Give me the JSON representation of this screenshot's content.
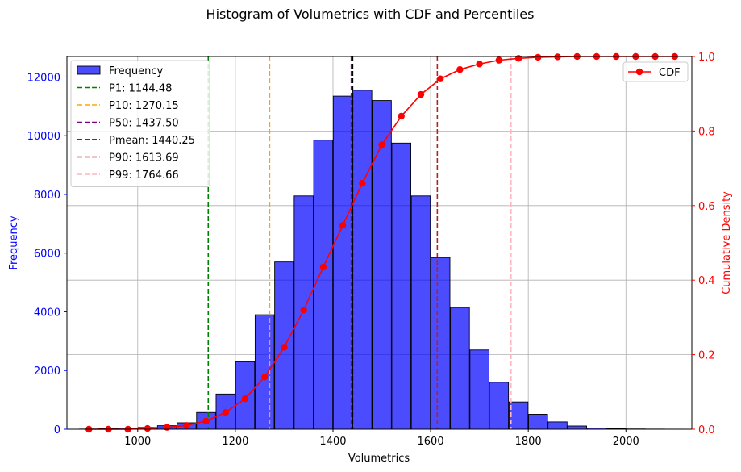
{
  "chart_data": {
    "type": "bar",
    "title": "Histogram of Volumetrics with CDF and Percentiles",
    "xlabel": "Volumetrics",
    "ylabel": "Frequency",
    "y2label": "Cumulative Density",
    "xlim": [
      855,
      2135
    ],
    "ylim": [
      0,
      12700
    ],
    "y2lim": [
      0,
      1.0
    ],
    "x_ticks": [
      1000,
      1200,
      1400,
      1600,
      1800,
      2000
    ],
    "y_ticks": [
      0,
      2000,
      4000,
      6000,
      8000,
      10000,
      12000
    ],
    "y2_ticks": [
      0.0,
      0.2,
      0.4,
      0.6,
      0.8,
      1.0
    ],
    "grid": true,
    "bar_width": 39,
    "bars": [
      {
        "x": 900,
        "value": 5
      },
      {
        "x": 940,
        "value": 20
      },
      {
        "x": 980,
        "value": 40
      },
      {
        "x": 1020,
        "value": 60
      },
      {
        "x": 1060,
        "value": 120
      },
      {
        "x": 1100,
        "value": 220
      },
      {
        "x": 1140,
        "value": 570
      },
      {
        "x": 1180,
        "value": 1200
      },
      {
        "x": 1220,
        "value": 2300
      },
      {
        "x": 1260,
        "value": 3900
      },
      {
        "x": 1300,
        "value": 5700
      },
      {
        "x": 1340,
        "value": 7950
      },
      {
        "x": 1380,
        "value": 9850
      },
      {
        "x": 1420,
        "value": 11350
      },
      {
        "x": 1460,
        "value": 11550
      },
      {
        "x": 1500,
        "value": 11200
      },
      {
        "x": 1540,
        "value": 9750
      },
      {
        "x": 1580,
        "value": 7950
      },
      {
        "x": 1620,
        "value": 5850
      },
      {
        "x": 1660,
        "value": 4150
      },
      {
        "x": 1700,
        "value": 2700
      },
      {
        "x": 1740,
        "value": 1600
      },
      {
        "x": 1780,
        "value": 930
      },
      {
        "x": 1820,
        "value": 510
      },
      {
        "x": 1860,
        "value": 250
      },
      {
        "x": 1900,
        "value": 110
      },
      {
        "x": 1940,
        "value": 40
      },
      {
        "x": 1980,
        "value": 20
      },
      {
        "x": 2020,
        "value": 8
      },
      {
        "x": 2060,
        "value": 4
      },
      {
        "x": 2100,
        "value": 2
      }
    ],
    "bar_color": "#0000ff",
    "bar_edge_color": "#000000",
    "percentile_lines": [
      {
        "label": "P1: 1144.48",
        "x": 1144.48,
        "color": "#008000"
      },
      {
        "label": "P10: 1270.15",
        "x": 1270.15,
        "color": "#ffa500"
      },
      {
        "label": "P50: 1437.50",
        "x": 1437.5,
        "color": "#800080"
      },
      {
        "label": "Pmean: 1440.25",
        "x": 1440.25,
        "color": "#000000"
      },
      {
        "label": "P90: 1613.69",
        "x": 1613.69,
        "color": "#b22222"
      },
      {
        "label": "P99: 1764.66",
        "x": 1764.66,
        "color": "#ffb6c1"
      }
    ],
    "cdf": {
      "name": "CDF",
      "color": "#ff0000",
      "x": [
        900,
        940,
        980,
        1020,
        1060,
        1100,
        1140,
        1180,
        1220,
        1260,
        1300,
        1340,
        1380,
        1420,
        1460,
        1500,
        1540,
        1580,
        1620,
        1660,
        1700,
        1740,
        1780,
        1820,
        1860,
        1900,
        1940,
        1980,
        2020,
        2060,
        2100
      ],
      "y": [
        0.0,
        0.0,
        0.0,
        0.002,
        0.005,
        0.01,
        0.022,
        0.045,
        0.082,
        0.14,
        0.22,
        0.32,
        0.435,
        0.547,
        0.66,
        0.763,
        0.84,
        0.898,
        0.94,
        0.965,
        0.98,
        0.99,
        0.995,
        0.998,
        0.999,
        1.0,
        1.0,
        1.0,
        1.0,
        1.0,
        1.0
      ]
    },
    "legend_left": {
      "placement": "top-left",
      "frequency_label": "Frequency"
    },
    "legend_right": {
      "placement": "top-right",
      "label": "CDF"
    }
  }
}
